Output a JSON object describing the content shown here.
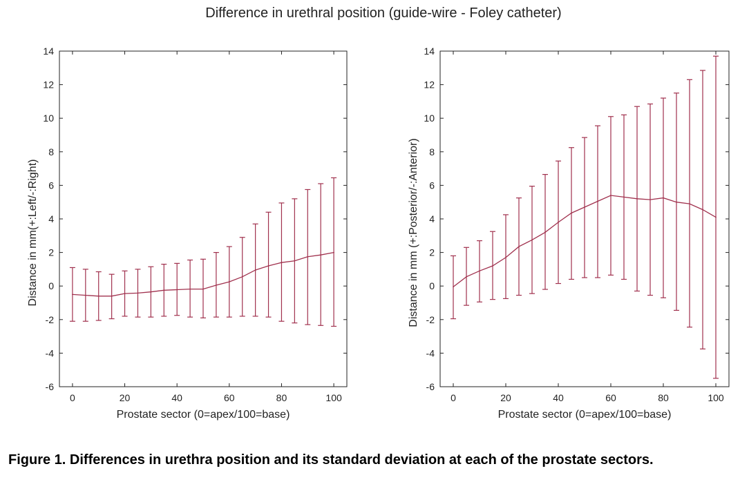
{
  "figure": {
    "suptitle": "Difference in urethral position (guide-wire - Foley catheter)",
    "caption": "Figure 1. Differences in urethra position and its standard deviation at each of the prostate sectors.",
    "line_color": "#a0304d"
  },
  "chart_data": [
    {
      "type": "line",
      "title": "",
      "xlabel": "Prostate sector (0=apex/100=base)",
      "ylabel": "Distance in mm(+:Left/-:Right)",
      "xlim": [
        -5,
        105
      ],
      "ylim": [
        -6,
        14
      ],
      "xticks": [
        0,
        20,
        40,
        60,
        80,
        100
      ],
      "yticks": [
        -6,
        -4,
        -2,
        0,
        2,
        4,
        6,
        8,
        10,
        12,
        14
      ],
      "grid": false,
      "error_bars": true,
      "x": [
        0,
        5,
        10,
        15,
        20,
        25,
        30,
        35,
        40,
        45,
        50,
        55,
        60,
        65,
        70,
        75,
        80,
        85,
        90,
        95,
        100
      ],
      "y": [
        -0.5,
        -0.55,
        -0.6,
        -0.6,
        -0.45,
        -0.42,
        -0.35,
        -0.25,
        -0.22,
        -0.18,
        -0.18,
        0.05,
        0.25,
        0.55,
        0.95,
        1.2,
        1.4,
        1.5,
        1.75,
        1.85,
        2.0
      ],
      "y_lower": [
        -2.1,
        -2.1,
        -2.05,
        -1.95,
        -1.8,
        -1.85,
        -1.85,
        -1.8,
        -1.75,
        -1.85,
        -1.9,
        -1.85,
        -1.85,
        -1.8,
        -1.8,
        -1.85,
        -2.1,
        -2.2,
        -2.3,
        -2.35,
        -2.4
      ],
      "y_upper": [
        1.1,
        1.0,
        0.85,
        0.7,
        0.9,
        1.0,
        1.15,
        1.3,
        1.35,
        1.55,
        1.6,
        2.0,
        2.35,
        2.9,
        3.7,
        4.4,
        4.95,
        5.2,
        5.75,
        6.1,
        6.45
      ]
    },
    {
      "type": "line",
      "title": "",
      "xlabel": "Prostate sector (0=apex/100=base)",
      "ylabel": "Distance in mm (+:Posterior/-:Anterior)",
      "xlim": [
        -5,
        105
      ],
      "ylim": [
        -6,
        14
      ],
      "xticks": [
        0,
        20,
        40,
        60,
        80,
        100
      ],
      "yticks": [
        -6,
        -4,
        -2,
        0,
        2,
        4,
        6,
        8,
        10,
        12,
        14
      ],
      "grid": false,
      "error_bars": true,
      "x": [
        0,
        5,
        10,
        15,
        20,
        25,
        30,
        35,
        40,
        45,
        50,
        55,
        60,
        65,
        70,
        75,
        80,
        85,
        90,
        95,
        100
      ],
      "y": [
        -0.05,
        0.55,
        0.9,
        1.2,
        1.7,
        2.35,
        2.75,
        3.2,
        3.8,
        4.35,
        4.7,
        5.05,
        5.4,
        5.3,
        5.2,
        5.15,
        5.25,
        5.0,
        4.9,
        4.55,
        4.1
      ],
      "y_lower": [
        -1.95,
        -1.15,
        -0.95,
        -0.8,
        -0.75,
        -0.55,
        -0.45,
        -0.2,
        0.15,
        0.4,
        0.5,
        0.5,
        0.65,
        0.4,
        -0.3,
        -0.55,
        -0.7,
        -1.45,
        -2.45,
        -3.75,
        -5.5
      ],
      "y_upper": [
        1.8,
        2.3,
        2.7,
        3.25,
        4.25,
        5.25,
        5.95,
        6.65,
        7.45,
        8.25,
        8.85,
        9.55,
        10.1,
        10.2,
        10.7,
        10.85,
        11.2,
        11.5,
        12.3,
        12.85,
        13.7
      ]
    }
  ]
}
